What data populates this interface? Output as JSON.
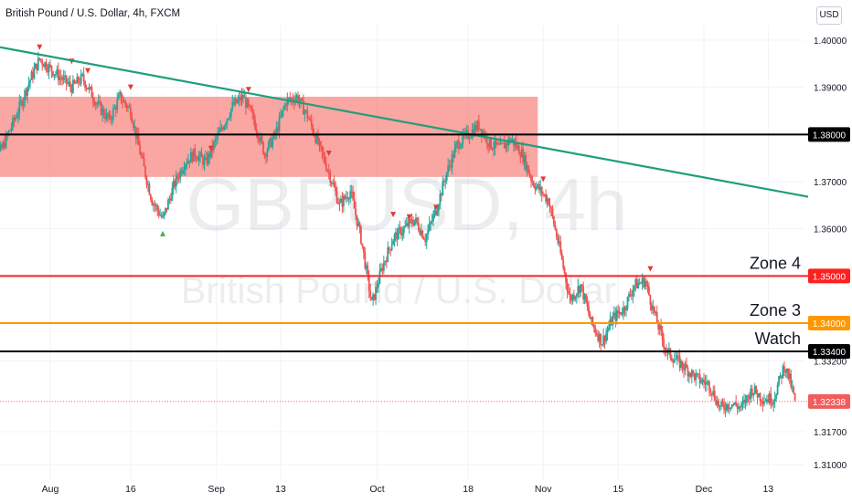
{
  "header": {
    "title": "British Pound / U.S. Dollar, 4h, FXCM",
    "currency_button": "USD"
  },
  "watermark": {
    "symbol": "GBPUSD, 4h",
    "description": "British Pound / U.S. Dollar"
  },
  "colors": {
    "up_candle": "#26a69a",
    "down_candle": "#ef5350",
    "zone_fill": "#f7706a",
    "trendline": "#1f9e7d",
    "level_black": "#000000",
    "level_red": "#ff1f1f",
    "level_orange": "#ff9800",
    "last_price": "#f15d5d",
    "grid": "#f0f3fa",
    "axis_text": "#131722"
  },
  "chart_data": {
    "type": "candlestick",
    "symbol": "GBPUSD",
    "timeframe": "4h",
    "x_range": [
      "2021-07-20",
      "2021-12-18"
    ],
    "ylim": [
      1.3065,
      1.4095
    ],
    "x_tick_labels": [
      {
        "label": "Aug",
        "date": "2021-08-01"
      },
      {
        "label": "16",
        "date": "2021-08-16"
      },
      {
        "label": "Sep",
        "date": "2021-09-01"
      },
      {
        "label": "13",
        "date": "2021-09-13"
      },
      {
        "label": "Oct",
        "date": "2021-10-01"
      },
      {
        "label": "18",
        "date": "2021-10-18"
      },
      {
        "label": "Nov",
        "date": "2021-11-01"
      },
      {
        "label": "15",
        "date": "2021-11-15"
      },
      {
        "label": "Dec",
        "date": "2021-12-01"
      },
      {
        "label": "13",
        "date": "2021-12-13"
      }
    ],
    "y_ticks": [
      1.4,
      1.39,
      1.37,
      1.36,
      1.35,
      1.332,
      1.317,
      1.31
    ],
    "price_path": [
      [
        "2021-07-20",
        1.372
      ],
      [
        "2021-07-23",
        1.377
      ],
      [
        "2021-07-26",
        1.385
      ],
      [
        "2021-07-28",
        1.391
      ],
      [
        "2021-07-30",
        1.396
      ],
      [
        "2021-08-02",
        1.393
      ],
      [
        "2021-08-05",
        1.39
      ],
      [
        "2021-08-07",
        1.392
      ],
      [
        "2021-08-10",
        1.386
      ],
      [
        "2021-08-12",
        1.383
      ],
      [
        "2021-08-14",
        1.388
      ],
      [
        "2021-08-16",
        1.385
      ],
      [
        "2021-08-18",
        1.375
      ],
      [
        "2021-08-20",
        1.366
      ],
      [
        "2021-08-22",
        1.362
      ],
      [
        "2021-08-24",
        1.369
      ],
      [
        "2021-08-26",
        1.374
      ],
      [
        "2021-08-28",
        1.376
      ],
      [
        "2021-08-30",
        1.374
      ],
      [
        "2021-09-01",
        1.379
      ],
      [
        "2021-09-04",
        1.386
      ],
      [
        "2021-09-06",
        1.388
      ],
      [
        "2021-09-08",
        1.383
      ],
      [
        "2021-09-10",
        1.376
      ],
      [
        "2021-09-12",
        1.38
      ],
      [
        "2021-09-14",
        1.387
      ],
      [
        "2021-09-16",
        1.388
      ],
      [
        "2021-09-18",
        1.384
      ],
      [
        "2021-09-20",
        1.378
      ],
      [
        "2021-09-22",
        1.372
      ],
      [
        "2021-09-24",
        1.365
      ],
      [
        "2021-09-26",
        1.368
      ],
      [
        "2021-09-28",
        1.358
      ],
      [
        "2021-09-30",
        1.344
      ],
      [
        "2021-10-02",
        1.352
      ],
      [
        "2021-10-04",
        1.358
      ],
      [
        "2021-10-06",
        1.36
      ],
      [
        "2021-10-08",
        1.362
      ],
      [
        "2021-10-10",
        1.358
      ],
      [
        "2021-10-12",
        1.364
      ],
      [
        "2021-10-14",
        1.372
      ],
      [
        "2021-10-16",
        1.378
      ],
      [
        "2021-10-18",
        1.38
      ],
      [
        "2021-10-20",
        1.382
      ],
      [
        "2021-10-22",
        1.378
      ],
      [
        "2021-10-24",
        1.377
      ],
      [
        "2021-10-26",
        1.379
      ],
      [
        "2021-10-28",
        1.376
      ],
      [
        "2021-10-30",
        1.37
      ],
      [
        "2021-11-02",
        1.366
      ],
      [
        "2021-11-04",
        1.356
      ],
      [
        "2021-11-06",
        1.345
      ],
      [
        "2021-11-08",
        1.348
      ],
      [
        "2021-11-10",
        1.34
      ],
      [
        "2021-11-12",
        1.336
      ],
      [
        "2021-11-14",
        1.341
      ],
      [
        "2021-11-16",
        1.343
      ],
      [
        "2021-11-18",
        1.348
      ],
      [
        "2021-11-20",
        1.349
      ],
      [
        "2021-11-22",
        1.341
      ],
      [
        "2021-11-24",
        1.334
      ],
      [
        "2021-11-26",
        1.332
      ],
      [
        "2021-11-28",
        1.33
      ],
      [
        "2021-11-30",
        1.328
      ],
      [
        "2021-12-02",
        1.327
      ],
      [
        "2021-12-04",
        1.322
      ],
      [
        "2021-12-06",
        1.323
      ],
      [
        "2021-12-08",
        1.322
      ],
      [
        "2021-12-10",
        1.326
      ],
      [
        "2021-12-12",
        1.324
      ],
      [
        "2021-12-14",
        1.324
      ],
      [
        "2021-12-16",
        1.331
      ],
      [
        "2021-12-17",
        1.328
      ],
      [
        "2021-12-18",
        1.3234
      ]
    ],
    "zones": [
      {
        "from": "2021-07-20",
        "to": "2021-10-31",
        "low": 1.371,
        "high": 1.388
      }
    ],
    "trendline": {
      "start": [
        "2021-07-20",
        1.3985
      ],
      "end": [
        "2021-12-18",
        1.3668
      ]
    },
    "levels": [
      {
        "price": 1.38,
        "label": "",
        "badge": "1.38000",
        "color": "#000000"
      },
      {
        "price": 1.35,
        "label": "Zone 4",
        "badge": "1.35000",
        "color": "#ff1f1f"
      },
      {
        "price": 1.34,
        "label": "Zone 3",
        "badge": "1.34000",
        "color": "#ff9800"
      },
      {
        "price": 1.334,
        "label": "Watch",
        "badge": "1.33400",
        "color": "#000000"
      }
    ],
    "last_price": {
      "value": 1.32338,
      "badge": "1.32338"
    },
    "swing_markers": [
      {
        "date": "2021-07-20",
        "price": 1.3705,
        "direction": "up"
      },
      {
        "date": "2021-07-30",
        "price": 1.3985,
        "direction": "down"
      },
      {
        "date": "2021-08-05",
        "price": 1.3955,
        "direction": "down"
      },
      {
        "date": "2021-08-08",
        "price": 1.3935,
        "direction": "down"
      },
      {
        "date": "2021-08-16",
        "price": 1.39,
        "direction": "down"
      },
      {
        "date": "2021-08-22",
        "price": 1.359,
        "direction": "up"
      },
      {
        "date": "2021-08-31",
        "price": 1.377,
        "direction": "down"
      },
      {
        "date": "2021-09-07",
        "price": 1.3895,
        "direction": "down"
      },
      {
        "date": "2021-09-22",
        "price": 1.376,
        "direction": "down"
      },
      {
        "date": "2021-10-04",
        "price": 1.363,
        "direction": "down"
      },
      {
        "date": "2021-10-07",
        "price": 1.3625,
        "direction": "down"
      },
      {
        "date": "2021-10-12",
        "price": 1.3645,
        "direction": "down"
      },
      {
        "date": "2021-11-01",
        "price": 1.3705,
        "direction": "down"
      },
      {
        "date": "2021-11-21",
        "price": 1.3515,
        "direction": "down"
      }
    ]
  }
}
